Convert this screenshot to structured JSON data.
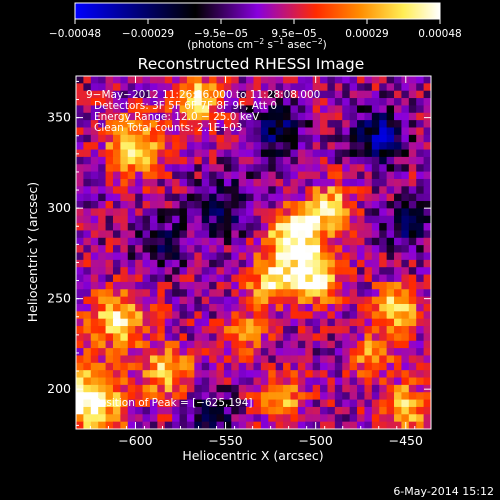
{
  "figure": {
    "footer_date": "6-May-2014 15:12"
  },
  "colorbar": {
    "tick_labels": [
      "−0.00048",
      "−0.00029",
      "−9.5e−05",
      "9.5e−05",
      "0.00029",
      "0.00048"
    ],
    "unit_main": "(photons cm",
    "unit_sup1": "−2",
    "unit_mid": " s",
    "unit_sup2": "−1",
    "unit_mid2": " asec",
    "unit_sup3": "−2",
    "unit_end": ")",
    "colors": [
      "#0000ff",
      "#000000",
      "#8800dd",
      "#ff2a00",
      "#ff8c00",
      "#ffee55",
      "#ffffff"
    ]
  },
  "chart_data": {
    "type": "heatmap",
    "title": "Reconstructed RHESSI Image",
    "xlabel": "Heliocentric X (arcsec)",
    "ylabel": "Heliocentric Y (arcsec)",
    "xlim": [
      -633,
      -436
    ],
    "ylim": [
      178,
      373
    ],
    "x_ticks": [
      -600,
      -550,
      -500,
      -450
    ],
    "y_ticks": [
      200,
      250,
      300,
      350
    ],
    "x_tick_labels": [
      "−600",
      "−550",
      "−500",
      "−450"
    ],
    "y_tick_labels": [
      "200",
      "250",
      "300",
      "350"
    ],
    "value_range": [
      -0.00048,
      0.00048
    ],
    "info_lines": [
      "9−May−2012 11:26:16.000 to 11:28:08.000",
      "Detectors: 3F 5F 6F 7F 8F 9F, Att 0",
      "Energy Range: 12.0 − 25.0 keV",
      "Clean     Total counts: 2.1E+03"
    ],
    "peak_label": "Position of Peak = [−625,194]",
    "peak": [
      -625,
      194
    ],
    "sources": [
      {
        "x": -512,
        "y": 283,
        "amp": 0.00048,
        "sigma": 11
      },
      {
        "x": -500,
        "y": 262,
        "amp": 0.00042,
        "sigma": 10
      },
      {
        "x": -525,
        "y": 258,
        "amp": 0.00036,
        "sigma": 9
      },
      {
        "x": -492,
        "y": 300,
        "amp": 0.00038,
        "sigma": 9
      },
      {
        "x": -600,
        "y": 335,
        "amp": 0.0004,
        "sigma": 11
      },
      {
        "x": -565,
        "y": 360,
        "amp": 0.00038,
        "sigma": 9
      },
      {
        "x": -625,
        "y": 194,
        "amp": 0.00048,
        "sigma": 13
      },
      {
        "x": -610,
        "y": 238,
        "amp": 0.00036,
        "sigma": 11
      },
      {
        "x": -582,
        "y": 210,
        "amp": 0.00034,
        "sigma": 10
      },
      {
        "x": -455,
        "y": 245,
        "amp": 0.00038,
        "sigma": 9
      },
      {
        "x": -450,
        "y": 190,
        "amp": 0.00036,
        "sigma": 9
      },
      {
        "x": -520,
        "y": 195,
        "amp": 0.00032,
        "sigma": 9
      },
      {
        "x": -470,
        "y": 218,
        "amp": 0.00028,
        "sigma": 8
      },
      {
        "x": -540,
        "y": 232,
        "amp": 0.00026,
        "sigma": 8
      },
      {
        "x": -465,
        "y": 340,
        "amp": -0.00036,
        "sigma": 10
      },
      {
        "x": -522,
        "y": 343,
        "amp": -0.0003,
        "sigma": 10
      },
      {
        "x": -550,
        "y": 300,
        "amp": -0.00022,
        "sigma": 12
      },
      {
        "x": -585,
        "y": 280,
        "amp": -0.0002,
        "sigma": 10
      },
      {
        "x": -558,
        "y": 185,
        "amp": -0.00026,
        "sigma": 9
      },
      {
        "x": -450,
        "y": 290,
        "amp": -0.00024,
        "sigma": 9
      }
    ]
  }
}
